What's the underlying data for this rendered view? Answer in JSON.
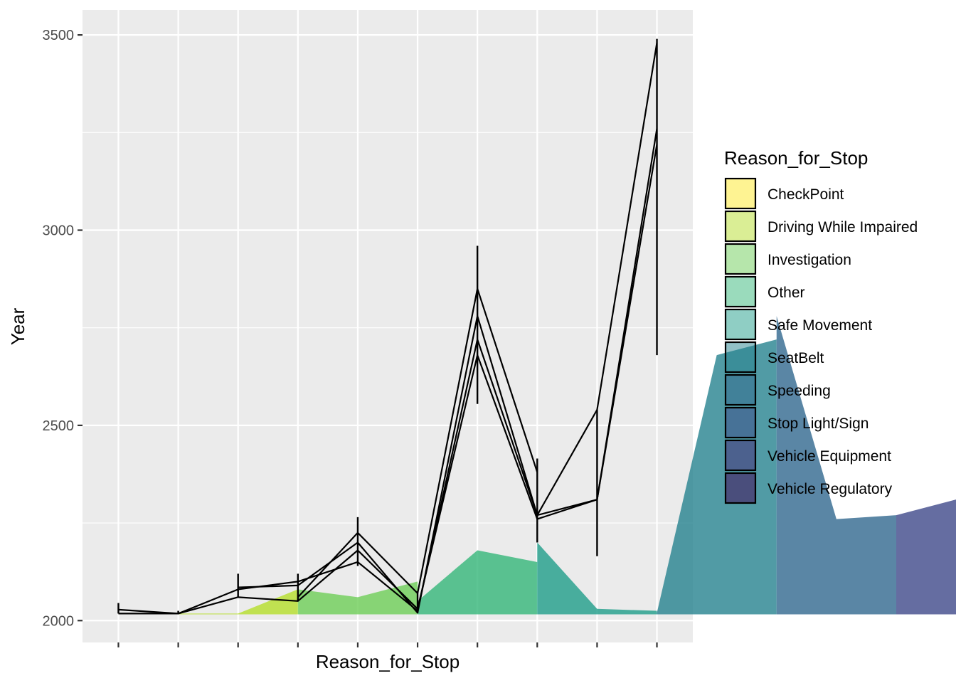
{
  "chart_data": {
    "type": "area",
    "xlabel": "Reason_for_Stop",
    "ylabel": "Year",
    "ylim": [
      1944,
      3564
    ],
    "y_ticks": [
      2000,
      2500,
      3000,
      3500
    ],
    "y_tick_labels": [
      "2000",
      "2500",
      "3000",
      "3500"
    ],
    "y_minor_ticks": [
      2250,
      2750,
      3250
    ],
    "x_positions": [
      1,
      2,
      3,
      4,
      5,
      6,
      7,
      8,
      9,
      10
    ],
    "xlim": [
      0.4,
      10.6
    ],
    "baseline": 2016,
    "grid": true,
    "legend_position": "right",
    "legend_title": "Reason_for_Stop",
    "series": [
      {
        "name": "CheckPoint",
        "color": "#FDE725",
        "values": [
          2018,
          2018
        ]
      },
      {
        "name": "Driving While Impaired",
        "color": "#B5DE2B",
        "values": [
          2018,
          2018,
          2080
        ]
      },
      {
        "name": "Investigation",
        "color": "#6ECE58",
        "values": [
          2080,
          2060,
          2100
        ]
      },
      {
        "name": "Other",
        "color": "#35B779",
        "values": [
          2050,
          2180,
          2150
        ]
      },
      {
        "name": "Safe Movement",
        "color": "#1F9E89",
        "values": [
          2200,
          2030,
          2025
        ]
      },
      {
        "name": "SeatBelt",
        "color": "#26828E",
        "values": [
          2020,
          2680,
          2720
        ]
      },
      {
        "name": "Speeding",
        "color": "#31688E",
        "values": [
          2780,
          2260,
          2270
        ]
      },
      {
        "name": "Stop Light/Sign",
        "color": "#3E4989",
        "values": [
          2270,
          2310
        ]
      },
      {
        "name": "Vehicle Equipment",
        "color": "#482878",
        "values": [
          2540,
          3260,
          3480
        ]
      },
      {
        "name": "Vehicle Regulatory",
        "color": "#440154",
        "values": [
          2310,
          3220
        ]
      }
    ],
    "lines": [
      {
        "x": [
          1,
          2,
          3,
          4,
          5,
          6,
          7,
          8,
          9,
          10
        ],
        "y": [
          2018,
          2018,
          2080,
          2100,
          2150,
          2025,
          2720,
          2270,
          2310,
          3220
        ]
      },
      {
        "x": [
          1,
          2,
          3,
          4,
          5,
          6,
          7,
          8,
          9,
          10
        ],
        "y": [
          2028,
          2018,
          2060,
          2050,
          2180,
          2030,
          2680,
          2260,
          2310,
          3260
        ]
      },
      {
        "x": [
          3,
          4,
          5,
          6,
          7,
          8,
          9,
          10
        ],
        "y": [
          2085,
          2090,
          2200,
          2020,
          2780,
          2270,
          2540,
          3480
        ]
      },
      {
        "x": [
          4,
          5,
          6,
          7,
          8
        ],
        "y": [
          2060,
          2225,
          2070,
          2850,
          2380
        ]
      }
    ],
    "error_bars": [
      {
        "x": 1,
        "ymin": 2018,
        "ymax": 2045
      },
      {
        "x": 2,
        "ymin": 2016,
        "ymax": 2025
      },
      {
        "x": 3,
        "ymin": 2060,
        "ymax": 2120
      },
      {
        "x": 4,
        "ymin": 2050,
        "ymax": 2120
      },
      {
        "x": 5,
        "ymin": 2140,
        "ymax": 2265
      },
      {
        "x": 6,
        "ymin": 2020,
        "ymax": 2075
      },
      {
        "x": 7,
        "ymin": 2555,
        "ymax": 2960
      },
      {
        "x": 8,
        "ymin": 2200,
        "ymax": 2415
      },
      {
        "x": 9,
        "ymin": 2165,
        "ymax": 2540
      },
      {
        "x": 10,
        "ymin": 2680,
        "ymax": 3490
      }
    ]
  }
}
